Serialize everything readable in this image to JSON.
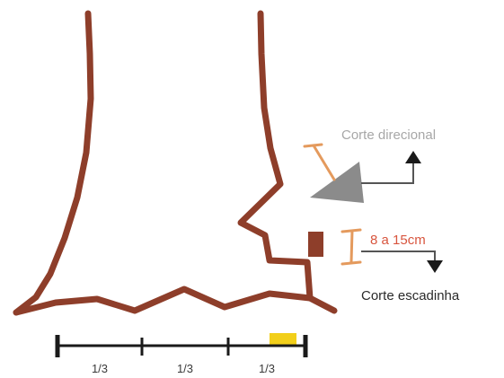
{
  "labels": {
    "directional_cut": "Corte direcional",
    "cut_range": "8 a 15cm",
    "step_cut": "Corte escadinha"
  },
  "scale_bar": {
    "segments": [
      "1/3",
      "1/3",
      "1/3"
    ],
    "highlight_color": "#f2cf1a"
  },
  "colors": {
    "trunk_outline": "#8e3e2a",
    "felling_notch": "#8b8b8b",
    "dimension_marker": "#e49a5d",
    "range_text": "#d8553e",
    "directional_text": "#a7a7a7"
  }
}
